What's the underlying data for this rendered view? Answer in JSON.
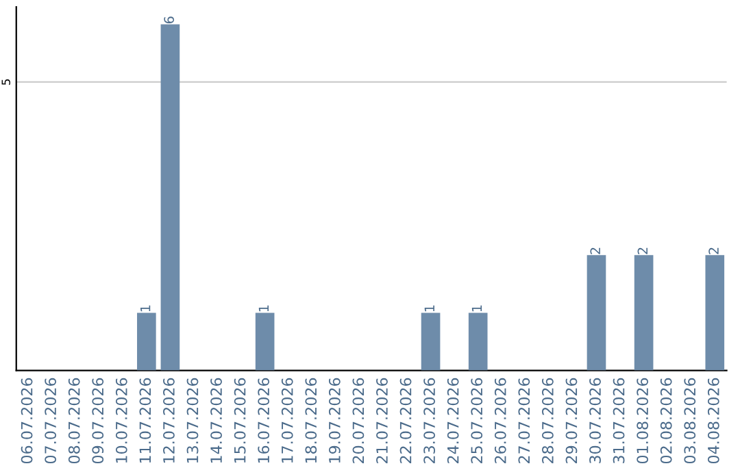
{
  "chart_data": {
    "type": "bar",
    "categories": [
      "06.07.2026",
      "07.07.2026",
      "08.07.2026",
      "09.07.2026",
      "10.07.2026",
      "11.07.2026",
      "12.07.2026",
      "13.07.2026",
      "14.07.2026",
      "15.07.2026",
      "16.07.2026",
      "17.07.2026",
      "18.07.2026",
      "19.07.2026",
      "20.07.2026",
      "21.07.2026",
      "22.07.2026",
      "23.07.2026",
      "24.07.2026",
      "25.07.2026",
      "26.07.2026",
      "27.07.2026",
      "28.07.2026",
      "29.07.2026",
      "30.07.2026",
      "31.07.2026",
      "01.08.2026",
      "02.08.2026",
      "03.08.2026",
      "04.08.2026"
    ],
    "values": [
      0,
      0,
      0,
      0,
      0,
      1,
      6,
      0,
      0,
      0,
      1,
      0,
      0,
      0,
      0,
      0,
      0,
      1,
      0,
      1,
      0,
      0,
      0,
      0,
      2,
      0,
      2,
      0,
      0,
      2
    ],
    "value_labels": [
      null,
      null,
      null,
      null,
      null,
      "1",
      "6",
      null,
      null,
      null,
      "1",
      null,
      null,
      null,
      null,
      null,
      null,
      "1",
      null,
      "1",
      null,
      null,
      null,
      null,
      "2",
      null,
      "2",
      null,
      null,
      "2"
    ],
    "color": "#6e8caa",
    "ylim": [
      0,
      6.3
    ],
    "yticks": [
      5
    ],
    "grid": "y"
  }
}
